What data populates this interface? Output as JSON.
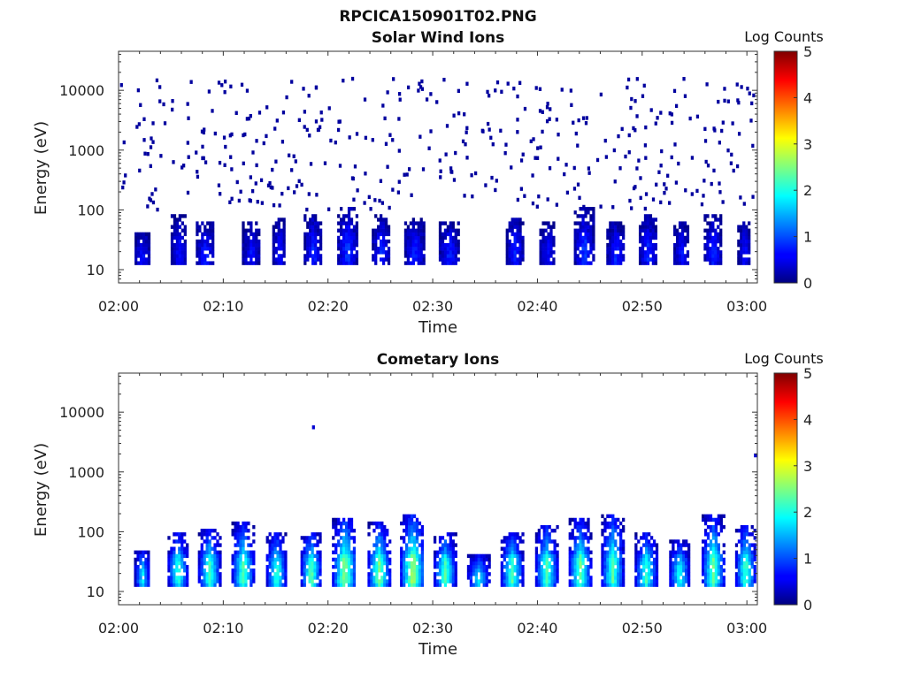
{
  "figure_title": "RPCICA150901T02.PNG",
  "chart_data": [
    {
      "type": "heatmap",
      "title": "Solar Wind Ions",
      "xlabel": "Time",
      "ylabel": "Energy (eV)",
      "x_ticks": [
        "02:00",
        "02:10",
        "02:20",
        "02:30",
        "02:40",
        "02:50",
        "03:00"
      ],
      "y_ticks": [
        "10",
        "100",
        "1000",
        "10000"
      ],
      "y_scale": "log",
      "ylim": [
        6,
        45000
      ],
      "xlim_minutes": [
        0,
        61
      ],
      "colorbar": {
        "label": "Log Counts",
        "min": 0,
        "max": 5,
        "ticks": [
          "0",
          "1",
          "2",
          "3",
          "4",
          "5"
        ]
      },
      "bursts": [
        {
          "t": 2.3,
          "emax": 45,
          "peak": 0.6,
          "w": 1.3
        },
        {
          "t": 5.8,
          "emax": 80,
          "peak": 0.6,
          "w": 1.4
        },
        {
          "t": 8.3,
          "emax": 60,
          "peak": 0.7,
          "w": 1.6
        },
        {
          "t": 12.7,
          "emax": 60,
          "peak": 0.6,
          "w": 1.6
        },
        {
          "t": 15.4,
          "emax": 70,
          "peak": 0.6,
          "w": 1.2
        },
        {
          "t": 18.6,
          "emax": 90,
          "peak": 0.7,
          "w": 1.6
        },
        {
          "t": 21.9,
          "emax": 120,
          "peak": 0.8,
          "w": 1.8
        },
        {
          "t": 25.1,
          "emax": 90,
          "peak": 0.7,
          "w": 1.6
        },
        {
          "t": 28.3,
          "emax": 70,
          "peak": 0.7,
          "w": 1.8
        },
        {
          "t": 31.6,
          "emax": 60,
          "peak": 0.7,
          "w": 1.8
        },
        {
          "t": 37.9,
          "emax": 70,
          "peak": 0.7,
          "w": 1.6
        },
        {
          "t": 41.0,
          "emax": 60,
          "peak": 0.6,
          "w": 1.4
        },
        {
          "t": 44.5,
          "emax": 110,
          "peak": 0.8,
          "w": 1.8
        },
        {
          "t": 47.5,
          "emax": 60,
          "peak": 0.7,
          "w": 1.6
        },
        {
          "t": 50.6,
          "emax": 80,
          "peak": 0.7,
          "w": 1.6
        },
        {
          "t": 53.8,
          "emax": 60,
          "peak": 0.6,
          "w": 1.4
        },
        {
          "t": 56.8,
          "emax": 80,
          "peak": 0.7,
          "w": 1.6
        },
        {
          "t": 59.8,
          "emax": 60,
          "peak": 0.6,
          "w": 1.2
        }
      ],
      "background_scatter": true
    },
    {
      "type": "heatmap",
      "title": "Cometary Ions",
      "xlabel": "Time",
      "ylabel": "Energy (eV)",
      "x_ticks": [
        "02:00",
        "02:10",
        "02:20",
        "02:30",
        "02:40",
        "02:50",
        "03:00"
      ],
      "y_ticks": [
        "10",
        "100",
        "1000",
        "10000"
      ],
      "y_scale": "log",
      "ylim": [
        6,
        45000
      ],
      "xlim_minutes": [
        0,
        61
      ],
      "colorbar": {
        "label": "Log Counts",
        "min": 0,
        "max": 5,
        "ticks": [
          "0",
          "1",
          "2",
          "3",
          "4",
          "5"
        ]
      },
      "bursts": [
        {
          "t": 2.3,
          "emax": 50,
          "peak": 1.6,
          "w": 1.4
        },
        {
          "t": 5.7,
          "emax": 100,
          "peak": 1.9,
          "w": 1.8
        },
        {
          "t": 8.7,
          "emax": 120,
          "peak": 1.9,
          "w": 2.0
        },
        {
          "t": 11.9,
          "emax": 140,
          "peak": 2.0,
          "w": 2.0
        },
        {
          "t": 15.1,
          "emax": 100,
          "peak": 1.9,
          "w": 1.8
        },
        {
          "t": 18.4,
          "emax": 100,
          "peak": 2.1,
          "w": 1.8
        },
        {
          "t": 21.6,
          "emax": 180,
          "peak": 2.3,
          "w": 2.2
        },
        {
          "t": 24.9,
          "emax": 140,
          "peak": 2.2,
          "w": 2.0
        },
        {
          "t": 28.1,
          "emax": 200,
          "peak": 2.4,
          "w": 2.2
        },
        {
          "t": 31.2,
          "emax": 100,
          "peak": 2.0,
          "w": 2.0
        },
        {
          "t": 34.4,
          "emax": 40,
          "peak": 1.6,
          "w": 2.0
        },
        {
          "t": 37.6,
          "emax": 100,
          "peak": 2.0,
          "w": 2.0
        },
        {
          "t": 40.9,
          "emax": 130,
          "peak": 2.0,
          "w": 2.0
        },
        {
          "t": 44.1,
          "emax": 160,
          "peak": 2.1,
          "w": 2.0
        },
        {
          "t": 47.2,
          "emax": 200,
          "peak": 2.0,
          "w": 2.0
        },
        {
          "t": 50.4,
          "emax": 100,
          "peak": 1.9,
          "w": 2.0
        },
        {
          "t": 53.6,
          "emax": 70,
          "peak": 1.8,
          "w": 1.8
        },
        {
          "t": 56.8,
          "emax": 200,
          "peak": 2.1,
          "w": 2.0
        },
        {
          "t": 59.9,
          "emax": 130,
          "peak": 2.0,
          "w": 1.8
        }
      ],
      "outliers": [
        {
          "t": 18.6,
          "e": 5600,
          "v": 0.4
        },
        {
          "t": 60.8,
          "e": 1900,
          "v": 0.4
        }
      ],
      "background_scatter": false
    }
  ]
}
